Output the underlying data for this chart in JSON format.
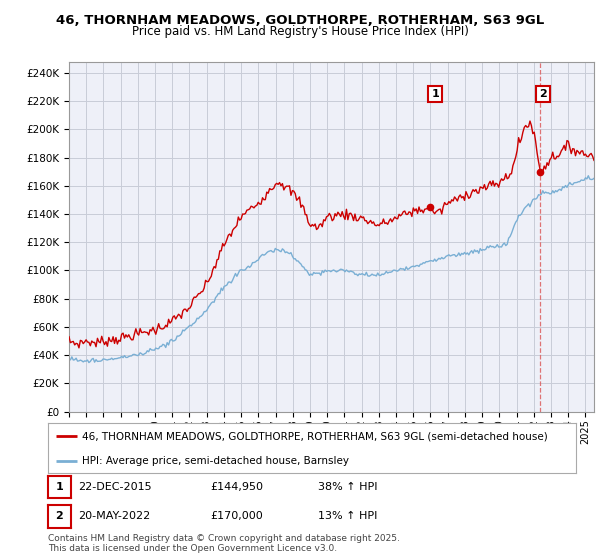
{
  "title": "46, THORNHAM MEADOWS, GOLDTHORPE, ROTHERHAM, S63 9GL",
  "subtitle": "Price paid vs. HM Land Registry's House Price Index (HPI)",
  "title_fontsize": 9.5,
  "subtitle_fontsize": 8.5,
  "ylabel_ticks": [
    "£0",
    "£20K",
    "£40K",
    "£60K",
    "£80K",
    "£100K",
    "£120K",
    "£140K",
    "£160K",
    "£180K",
    "£200K",
    "£220K",
    "£240K"
  ],
  "ytick_values": [
    0,
    20000,
    40000,
    60000,
    80000,
    100000,
    120000,
    140000,
    160000,
    180000,
    200000,
    220000,
    240000
  ],
  "ylim": [
    0,
    248000
  ],
  "xlim_start": 1995.0,
  "xlim_end": 2025.5,
  "xticks": [
    1995,
    1996,
    1997,
    1998,
    1999,
    2000,
    2001,
    2002,
    2003,
    2004,
    2005,
    2006,
    2007,
    2008,
    2009,
    2010,
    2011,
    2012,
    2013,
    2014,
    2015,
    2016,
    2017,
    2018,
    2019,
    2020,
    2021,
    2022,
    2023,
    2024,
    2025
  ],
  "red_line_color": "#cc0000",
  "blue_line_color": "#7aafd4",
  "sale1_x": 2015.97,
  "sale1_y": 144950,
  "sale2_x": 2022.38,
  "sale2_y": 170000,
  "sale1_label": "1",
  "sale2_label": "2",
  "vline_color": "#dd6666",
  "vline_style": "--",
  "background_color": "#eef0f8",
  "grid_color": "#c8ccd8",
  "legend_label_red": "46, THORNHAM MEADOWS, GOLDTHORPE, ROTHERHAM, S63 9GL (semi-detached house)",
  "legend_label_blue": "HPI: Average price, semi-detached house, Barnsley",
  "note1_label": "1",
  "note1_date": "22-DEC-2015",
  "note1_price": "£144,950",
  "note1_hpi": "38% ↑ HPI",
  "note2_label": "2",
  "note2_date": "20-MAY-2022",
  "note2_price": "£170,000",
  "note2_hpi": "13% ↑ HPI",
  "copyright_text": "Contains HM Land Registry data © Crown copyright and database right 2025.\nThis data is licensed under the Open Government Licence v3.0."
}
